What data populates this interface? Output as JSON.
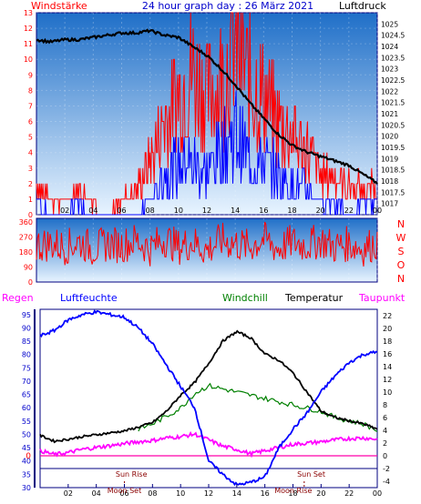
{
  "header": {
    "left_label": "Windstärke",
    "title": "24 hour graph day : 26 März 2021",
    "right_label": "Luftdruck"
  },
  "time_ticks": [
    "02",
    "04",
    "06",
    "08",
    "10",
    "12",
    "14",
    "16",
    "18",
    "20",
    "22",
    "00"
  ],
  "colors": {
    "panel_top": "#1f6fc8",
    "panel_bottom": "#e8f4ff",
    "wind_gust": "#ff0000",
    "wind_mean": "#0000ff",
    "pressure": "#000000",
    "direction": "#ff0000",
    "humidity": "#0000ff",
    "temperature": "#000000",
    "windchill": "#008000",
    "dewpoint": "#ff00ff",
    "zero_line": "#ff00aa",
    "frame": "#000080"
  },
  "chart_data": [
    {
      "type": "line",
      "name": "wind-pressure",
      "y_left_ticks": [
        "0",
        "1",
        "2",
        "3",
        "4",
        "5",
        "6",
        "7",
        "8",
        "9",
        "10",
        "11",
        "12",
        "13"
      ],
      "y_left_range": [
        0,
        13
      ],
      "y_right_ticks": [
        "1017",
        "1017.5",
        "1018",
        "1018.5",
        "1019",
        "1019.5",
        "1020",
        "1020.5",
        "1021",
        "1021.5",
        "1022",
        "1022.5",
        "1023",
        "1023.5",
        "1024",
        "1024.5",
        "1025"
      ],
      "y_right_range": [
        1016.5,
        1025.5
      ],
      "series": [
        {
          "key": "pressure",
          "x": [
            0,
            1,
            2,
            3,
            4,
            5,
            6,
            7,
            8,
            9,
            10,
            11,
            12,
            13,
            14,
            15,
            16,
            17,
            18,
            19,
            20,
            21,
            22,
            23,
            24
          ],
          "values": [
            1024.3,
            1024.2,
            1024.3,
            1024.3,
            1024.4,
            1024.5,
            1024.6,
            1024.6,
            1024.7,
            1024.5,
            1024.4,
            1024.0,
            1023.6,
            1023.0,
            1022.3,
            1021.5,
            1020.8,
            1020.1,
            1019.6,
            1019.3,
            1019.1,
            1018.9,
            1018.7,
            1018.3,
            1017.9
          ]
        },
        {
          "key": "wind_mean",
          "x": [
            0,
            1,
            2,
            3,
            4,
            5,
            6,
            7,
            8,
            9,
            10,
            11,
            12,
            13,
            14,
            15,
            16,
            17,
            18,
            19,
            20,
            21,
            22,
            23,
            24
          ],
          "values": [
            1,
            0,
            0,
            1,
            0,
            0,
            0,
            0,
            1,
            3,
            4,
            4,
            3,
            5,
            6,
            4,
            4,
            3,
            2,
            2,
            1,
            1,
            0,
            1,
            1
          ]
        },
        {
          "key": "wind_gust",
          "x": [
            0,
            1,
            2,
            3,
            4,
            5,
            6,
            7,
            8,
            9,
            10,
            11,
            12,
            13,
            14,
            15,
            16,
            17,
            18,
            19,
            20,
            21,
            22,
            23,
            24
          ],
          "values": [
            2,
            1,
            1,
            2,
            1,
            0,
            1,
            2,
            4,
            7,
            9,
            11,
            9,
            10,
            13,
            10,
            9,
            7,
            6,
            5,
            3,
            3,
            2,
            2,
            2
          ]
        }
      ]
    },
    {
      "type": "line",
      "name": "wind-direction",
      "y_left_ticks": [
        "0",
        "90",
        "180",
        "270",
        "360"
      ],
      "y_range": [
        0,
        360
      ],
      "y_right_ticks": [
        "N",
        "W",
        "S",
        "O",
        "N"
      ],
      "series": [
        {
          "key": "direction",
          "x": [
            0,
            1,
            2,
            3,
            4,
            5,
            6,
            7,
            8,
            9,
            10,
            11,
            12,
            13,
            14,
            15,
            16,
            17,
            18,
            19,
            20,
            21,
            22,
            23,
            24
          ],
          "values": [
            220,
            230,
            210,
            240,
            200,
            230,
            220,
            250,
            200,
            260,
            210,
            240,
            190,
            250,
            230,
            210,
            260,
            200,
            240,
            220,
            250,
            210,
            230,
            200,
            240
          ]
        }
      ]
    },
    {
      "type": "line",
      "name": "humidity-temperature",
      "labels": {
        "regen": "Regen",
        "luftfeuchte": "Luftfeuchte",
        "windchill": "Windchill",
        "temperatur": "Temperatur",
        "taupunkt": "Taupunkt",
        "zero_label": "0",
        "sun_rise": "Sun Rise",
        "sun_set": "Sun Set",
        "moon_set": "Moon Set",
        "moon_rise": "Moon Rise"
      },
      "y_left_ticks": [
        "30",
        "35",
        "40",
        "45",
        "50",
        "55",
        "60",
        "65",
        "70",
        "75",
        "80",
        "85",
        "90",
        "95"
      ],
      "y_left_range": [
        30,
        97
      ],
      "y_right_ticks": [
        "-4",
        "-2",
        "0",
        "2",
        "4",
        "6",
        "8",
        "10",
        "12",
        "14",
        "16",
        "18",
        "20",
        "22"
      ],
      "y_right_range": [
        -5,
        23
      ],
      "events": {
        "sun_rise": 6.5,
        "sun_set": 19.3,
        "moon_set": 6.0,
        "moon_rise": 18.8
      },
      "series": [
        {
          "key": "humidity",
          "x": [
            0,
            1,
            2,
            3,
            4,
            5,
            6,
            7,
            8,
            9,
            10,
            11,
            12,
            13,
            14,
            15,
            16,
            17,
            18,
            19,
            20,
            21,
            22,
            23,
            24
          ],
          "values": [
            87,
            89,
            93,
            95,
            96,
            95,
            94,
            90,
            84,
            76,
            68,
            60,
            40,
            35,
            31,
            32,
            34,
            45,
            52,
            58,
            66,
            72,
            77,
            80,
            81
          ]
        },
        {
          "key": "temperature",
          "x": [
            0,
            1,
            2,
            3,
            4,
            5,
            6,
            7,
            8,
            9,
            10,
            11,
            12,
            13,
            14,
            15,
            16,
            17,
            18,
            19,
            20,
            21,
            22,
            23,
            24
          ],
          "values": [
            3.2,
            2.3,
            2.6,
            3.0,
            3.3,
            3.6,
            3.9,
            4.5,
            5.2,
            7.0,
            9.5,
            11.5,
            14.5,
            18.0,
            19.5,
            18.5,
            16.0,
            15.0,
            13.0,
            10.0,
            7.0,
            6.0,
            5.5,
            5.0,
            4.2
          ]
        },
        {
          "key": "windchill",
          "x": [
            7,
            8,
            9,
            10,
            11,
            12,
            20,
            21,
            22,
            23,
            24
          ],
          "values": [
            4.2,
            5.0,
            6.2,
            7.5,
            9.8,
            11.0,
            7.0,
            6.0,
            5.5,
            5.0,
            4.0
          ]
        },
        {
          "key": "dewpoint",
          "x": [
            0,
            1,
            2,
            3,
            4,
            5,
            6,
            7,
            8,
            9,
            10,
            11,
            12,
            13,
            14,
            15,
            16,
            17,
            18,
            19,
            20,
            21,
            22,
            23,
            24
          ],
          "values": [
            0.8,
            0.2,
            0.5,
            1.0,
            1.3,
            1.6,
            1.9,
            2.2,
            2.4,
            2.8,
            3.0,
            3.4,
            2.5,
            1.5,
            1.0,
            0.3,
            0.8,
            1.3,
            1.8,
            2.0,
            2.2,
            2.5,
            2.7,
            2.8,
            2.6
          ]
        }
      ]
    }
  ]
}
